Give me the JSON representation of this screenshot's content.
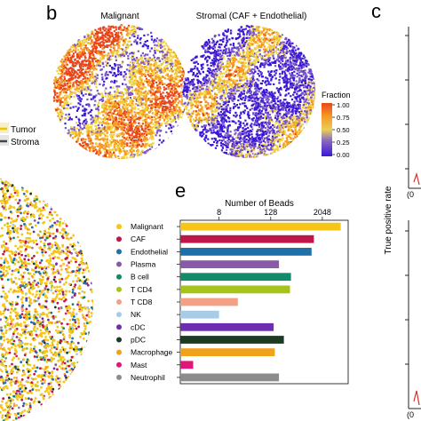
{
  "panel_b": {
    "letter": "b",
    "left_title": "Malignant",
    "right_title": "Stromal (CAF + Endothelial)",
    "colorbar_title": "Fraction",
    "colorbar_ticks": [
      "1.00",
      "0.75",
      "0.50",
      "0.25",
      "0.00"
    ],
    "colors": [
      "#3b17d8",
      "#7b56c9",
      "#f2d33a",
      "#f59a23",
      "#e8461a"
    ]
  },
  "panel_c": {
    "letter": "c",
    "ylabel": "True positive rate",
    "x_ticks": [
      "(0",
      "(0"
    ]
  },
  "panel_a_legend": {
    "items": [
      {
        "label": "Tumor",
        "color": "#f2c300"
      },
      {
        "label": "Stroma",
        "color": "#444444"
      }
    ]
  },
  "panel_e": {
    "letter": "e"
  },
  "chart_data": {
    "type": "bar",
    "orientation": "horizontal",
    "title": "Number of Beads",
    "x_scale": "log2",
    "x_ticks": [
      8,
      128,
      2048
    ],
    "xlim": [
      1,
      8192
    ],
    "categories": [
      "Malignant",
      "CAF",
      "Endothelial",
      "Plasma",
      "B cell",
      "T CD4",
      "T CD8",
      "NK",
      "cDC",
      "pDC",
      "Macrophage",
      "Mast",
      "Neutrophil"
    ],
    "values": [
      5500,
      1300,
      1150,
      200,
      380,
      360,
      22,
      8,
      150,
      260,
      160,
      2,
      200
    ],
    "colors": [
      "#f5c518",
      "#c0174a",
      "#1f6fa8",
      "#8a5aa8",
      "#138a6a",
      "#a5c41a",
      "#f4a084",
      "#a6cce8",
      "#6d2fb0",
      "#1e3a24",
      "#f0a21a",
      "#e0187a",
      "#8c8c8c"
    ]
  }
}
